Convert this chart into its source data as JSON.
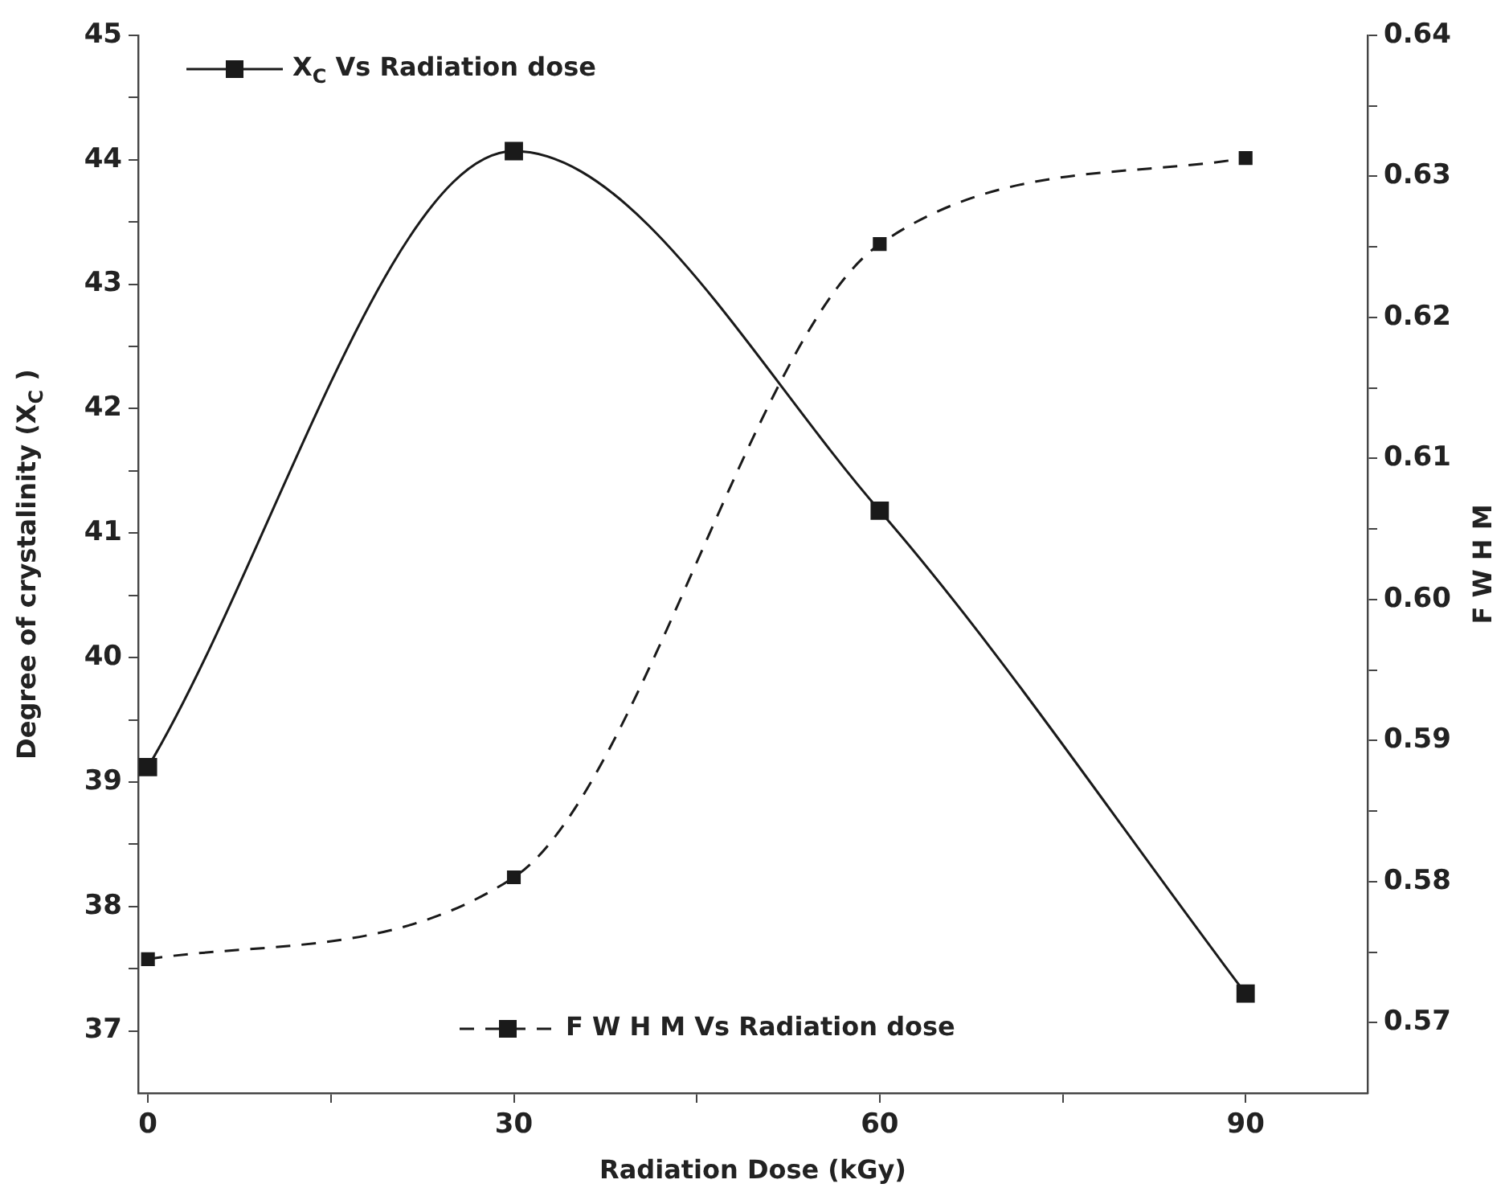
{
  "chart_data": {
    "type": "line",
    "xlabel": "Radiation Dose (kGy)",
    "ylabel": "Degree of crystalinity (X$_{C}$ )",
    "y2label": "F W H M",
    "x": [
      0,
      30,
      60,
      90
    ],
    "series": [
      {
        "name": "X$_{C}$ Vs Radiation dose",
        "color": "#1a1a1a",
        "values": [
          39.12,
          44.07,
          41.18,
          37.3
        ],
        "line_style": "solid",
        "marker": "square"
      },
      {
        "name": "F W H M Vs Radiation dose",
        "color": "#1a1a1a",
        "values": [
          0.5745,
          0.5803,
          0.6252,
          0.6313
        ],
        "axis": "y2",
        "line_style": "dashed",
        "marker": "square"
      }
    ],
    "xlim": [
      -0.8,
      100
    ],
    "xticks": [
      0,
      {
        "value": 15,
        "label": null
      },
      30,
      {
        "value": 45,
        "label": null
      },
      60,
      {
        "value": 75,
        "label": null
      },
      90
    ],
    "ylim": [
      36.5,
      45
    ],
    "yticks": [
      37,
      {
        "value": 37.5,
        "label": null
      },
      38,
      {
        "value": 38.5,
        "label": null
      },
      39,
      {
        "value": 39.5,
        "label": null
      },
      40,
      {
        "value": 40.5,
        "label": null
      },
      41,
      {
        "value": 41.5,
        "label": null
      },
      42,
      {
        "value": 42.5,
        "label": null
      },
      43,
      {
        "value": 43.5,
        "label": null
      },
      44,
      {
        "value": 44.5,
        "label": null
      },
      45
    ],
    "y2lim": [
      0.565,
      0.64
    ],
    "y2ticks": [
      0.57,
      {
        "value": 0.575,
        "label": null
      },
      0.58,
      {
        "value": 0.585,
        "label": null
      },
      0.59,
      {
        "value": 0.595,
        "label": null
      },
      {
        "value": 0.6,
        "label": "0.60"
      },
      {
        "value": 0.605,
        "label": null
      },
      0.61,
      {
        "value": 0.615,
        "label": null
      },
      0.62,
      {
        "value": 0.625,
        "label": null
      },
      0.63,
      {
        "value": 0.635,
        "label": null
      },
      0.64
    ],
    "grid": false,
    "legend": "top left"
  }
}
